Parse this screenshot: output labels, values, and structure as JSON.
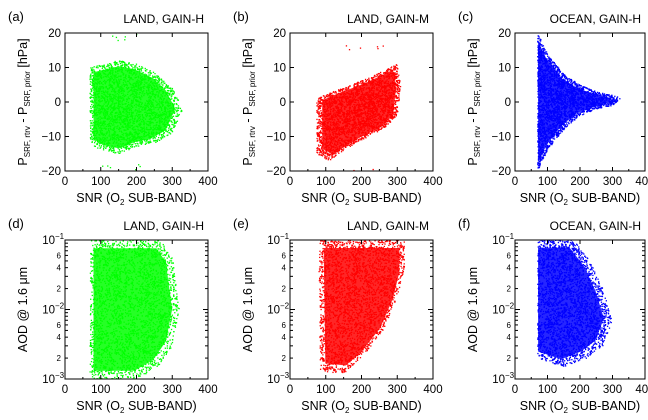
{
  "chart_data": [
    {
      "type": "scatter",
      "panel": "(a)",
      "title": "LAND, GAIN-H",
      "xlabel": "SNR (O2 SUB-BAND)",
      "ylabel": "P SRF, rtrv - P SRF, prior [hPa]",
      "xlim": [
        0,
        400
      ],
      "ylim": [
        -20,
        20
      ],
      "yscale": "linear",
      "xticks": [
        "0",
        "100",
        "200",
        "300",
        "400"
      ],
      "yticks": [
        "-20",
        "-10",
        "0",
        "10",
        "20"
      ],
      "color": "#00ff00",
      "cloud": {
        "x_range": [
          70,
          340
        ],
        "x_mode": 150,
        "outline": [
          [
            70,
            -12
          ],
          [
            70,
            10
          ],
          [
            150,
            12
          ],
          [
            200,
            11
          ],
          [
            260,
            8
          ],
          [
            300,
            4
          ],
          [
            330,
            -2
          ],
          [
            300,
            -9
          ],
          [
            250,
            -12
          ],
          [
            200,
            -13
          ],
          [
            150,
            -15
          ],
          [
            100,
            -14
          ]
        ],
        "outliers_y": [
          -19,
          19
        ],
        "density": "dense"
      }
    },
    {
      "type": "scatter",
      "panel": "(b)",
      "title": "LAND, GAIN-M",
      "xlabel": "SNR (O2 SUB-BAND)",
      "ylabel": "P SRF, rtrv - P SRF, prior [hPa]",
      "xlim": [
        0,
        400
      ],
      "ylim": [
        -20,
        20
      ],
      "yscale": "linear",
      "xticks": [
        "0",
        "100",
        "200",
        "300",
        "400"
      ],
      "yticks": [
        "-20",
        "-10",
        "0",
        "10",
        "20"
      ],
      "color": "#ff0000",
      "cloud": {
        "x_range": [
          75,
          310
        ],
        "x_mode": 200,
        "outline": [
          [
            75,
            -15
          ],
          [
            75,
            1
          ],
          [
            120,
            3
          ],
          [
            170,
            5
          ],
          [
            220,
            7
          ],
          [
            260,
            9
          ],
          [
            300,
            11
          ],
          [
            310,
            5
          ],
          [
            300,
            -4
          ],
          [
            260,
            -8
          ],
          [
            200,
            -11
          ],
          [
            150,
            -14
          ],
          [
            110,
            -17
          ]
        ],
        "outliers_y": [
          -20,
          16
        ],
        "density": "dense"
      }
    },
    {
      "type": "scatter",
      "panel": "(c)",
      "title": "OCEAN, GAIN-H",
      "xlabel": "SNR (O2 SUB-BAND)",
      "ylabel": "P SRF, rtrv - P SRF, prior [hPa]",
      "xlim": [
        0,
        400
      ],
      "ylim": [
        -20,
        20
      ],
      "yscale": "linear",
      "xticks": [
        "0",
        "100",
        "200",
        "300",
        "400"
      ],
      "yticks": [
        "-20",
        "-10",
        "0",
        "10",
        "20"
      ],
      "color": "#0000ff",
      "cloud": {
        "x_range": [
          70,
          340
        ],
        "x_mode": 80,
        "shape": "funnel narrowing toward 0 hPa at high SNR",
        "outline": [
          [
            70,
            -20
          ],
          [
            70,
            20
          ],
          [
            100,
            14
          ],
          [
            150,
            8
          ],
          [
            200,
            5
          ],
          [
            250,
            3
          ],
          [
            300,
            2
          ],
          [
            330,
            1
          ],
          [
            300,
            -1
          ],
          [
            250,
            -2
          ],
          [
            200,
            -4
          ],
          [
            150,
            -8
          ],
          [
            100,
            -14
          ]
        ],
        "density": "dense"
      }
    },
    {
      "type": "scatter",
      "panel": "(d)",
      "title": "LAND, GAIN-H",
      "xlabel": "SNR (O2 SUB-BAND)",
      "ylabel": "AOD @ 1.6 μm",
      "xlim": [
        0,
        400
      ],
      "ylim": [
        0.001,
        0.1
      ],
      "yscale": "log",
      "xticks": [
        "0",
        "100",
        "200",
        "300",
        "400"
      ],
      "yticks": [
        "10-3",
        "10-2",
        "10-1"
      ],
      "yminor_labels": [
        "2",
        "4",
        "6"
      ],
      "color": "#00ff00",
      "cloud": {
        "x_range": [
          70,
          330
        ],
        "x_mode": 150,
        "outline": [
          [
            70,
            0.001
          ],
          [
            70,
            0.1
          ],
          [
            270,
            0.1
          ],
          [
            300,
            0.06
          ],
          [
            320,
            0.01
          ],
          [
            300,
            0.003
          ],
          [
            260,
            0.0015
          ],
          [
            200,
            0.001
          ]
        ],
        "density": "dense"
      }
    },
    {
      "type": "scatter",
      "panel": "(e)",
      "title": "LAND, GAIN-M",
      "xlabel": "SNR (O2 SUB-BAND)",
      "ylabel": "AOD @ 1.6 μm",
      "xlim": [
        0,
        400
      ],
      "ylim": [
        0.001,
        0.1
      ],
      "yscale": "log",
      "xticks": [
        "0",
        "100",
        "200",
        "300",
        "400"
      ],
      "yticks": [
        "10-3",
        "10-2",
        "10-1"
      ],
      "yminor_labels": [
        "2",
        "4",
        "6"
      ],
      "color": "#ff0000",
      "cloud": {
        "x_range": [
          80,
          330
        ],
        "x_mode": 200,
        "outline": [
          [
            85,
            0.0013
          ],
          [
            80,
            0.1
          ],
          [
            320,
            0.1
          ],
          [
            320,
            0.04
          ],
          [
            300,
            0.015
          ],
          [
            260,
            0.005
          ],
          [
            200,
            0.002
          ],
          [
            150,
            0.0012
          ]
        ],
        "density": "dense"
      }
    },
    {
      "type": "scatter",
      "panel": "(f)",
      "title": "OCEAN, GAIN-H",
      "xlabel": "SNR (O2 SUB-BAND)",
      "ylabel": "AOD @ 1.6 μm",
      "xlim": [
        0,
        400
      ],
      "ylim": [
        0.001,
        0.1
      ],
      "yscale": "log",
      "xticks": [
        "0",
        "100",
        "200",
        "300",
        "400"
      ],
      "yticks": [
        "10-3",
        "10-2",
        "10-1"
      ],
      "yminor_labels": [
        "2",
        "4",
        "6"
      ],
      "color": "#0000ff",
      "cloud": {
        "x_range": [
          70,
          340
        ],
        "x_mode": 80,
        "outline": [
          [
            70,
            0.002
          ],
          [
            70,
            0.1
          ],
          [
            180,
            0.1
          ],
          [
            230,
            0.05
          ],
          [
            270,
            0.02
          ],
          [
            300,
            0.007
          ],
          [
            270,
            0.003
          ],
          [
            220,
            0.002
          ],
          [
            150,
            0.0015
          ]
        ],
        "density": "dense"
      }
    }
  ]
}
